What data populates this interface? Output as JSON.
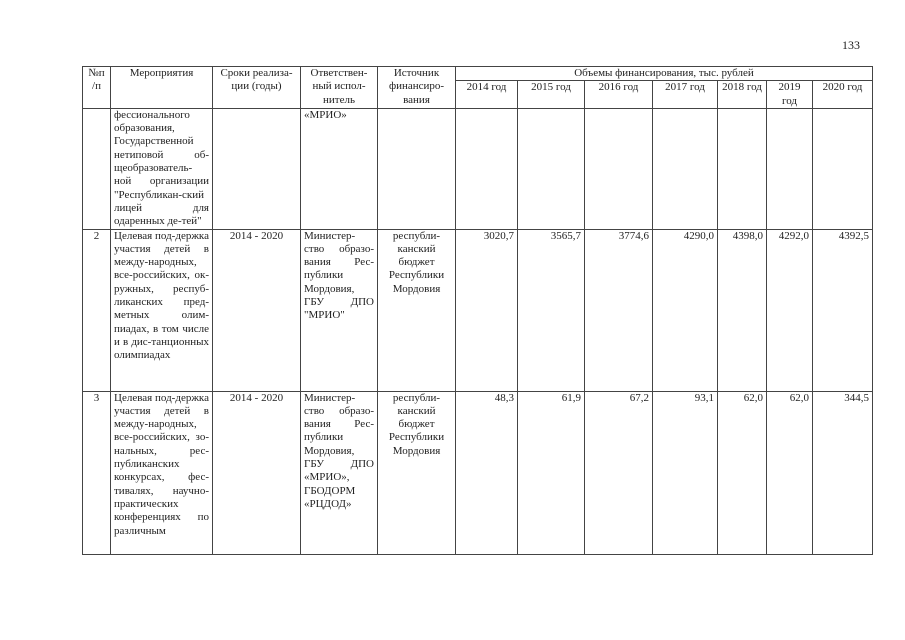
{
  "page_number": "133",
  "header": {
    "num": "№п /п",
    "activity": "Мероприятия",
    "period": "Сроки реализа-ции (годы)",
    "executor": "Ответствен-ный испол-нитель",
    "source": "Источник финансиро-вания",
    "funding": "Объемы финансирования, тыс. рублей",
    "years": [
      "2014 год",
      "2015 год",
      "2016 год",
      "2017 год",
      "2018 год",
      "2019 год",
      "2020 год"
    ]
  },
  "rows": [
    {
      "num": "",
      "activity": "фессионального образования, Государственной нетиповой об-щеобразователь-ной организации \"Республикан-ский лицей для одаренных де-тей\"",
      "period": "",
      "executor": "«МРИО»",
      "source": "",
      "values": [
        "",
        "",
        "",
        "",
        "",
        "",
        ""
      ]
    },
    {
      "num": "2",
      "activity": "Целевая под-держка участия детей в между-народных, все-российских, ок-ружных, респуб-ликанских пред-метных олим-пиадах, в том числе и в дис-танционных олимпиадах",
      "period": "2014 - 2020",
      "executor": "Министер-ство образо-вания Рес-публики Мордовия, ГБУ ДПО \"МРИО\"",
      "source": "республи-канский бюджет Республики Мордовия",
      "values": [
        "3020,7",
        "3565,7",
        "3774,6",
        "4290,0",
        "4398,0",
        "4292,0",
        "4392,5"
      ]
    },
    {
      "num": "3",
      "activity": "Целевая под-держка участия детей в между-народных, все-российских, зо-нальных, рес-публиканских конкурсах, фес-тивалях, научно-практических конференциях по различным",
      "period": "2014 - 2020",
      "executor": "Министер-ство образо-вания Рес-публики Мордовия, ГБУ ДПО «МРИО», ГБОДОРМ «РЦДОД»",
      "source": "республи-канский бюджет Республики Мордовия",
      "values": [
        "48,3",
        "61,9",
        "67,2",
        "93,1",
        "62,0",
        "62,0",
        "344,5"
      ]
    }
  ]
}
